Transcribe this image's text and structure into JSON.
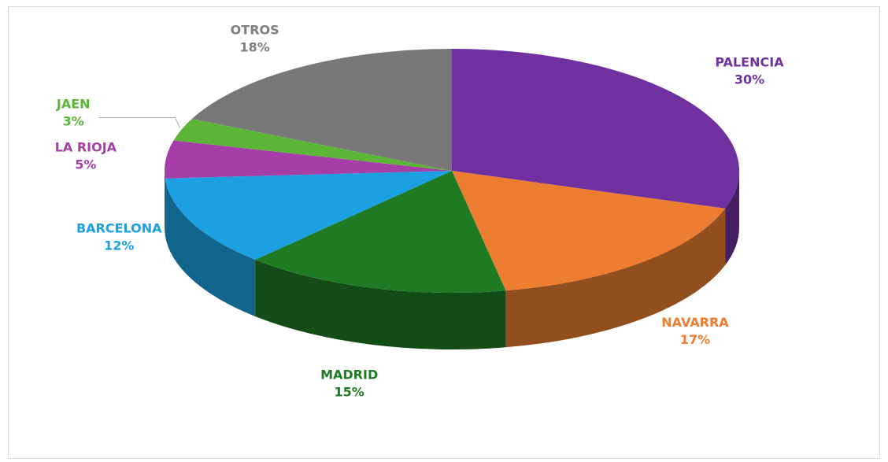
{
  "chart_data": {
    "type": "pie",
    "title": "",
    "slices": [
      {
        "name": "PALENCIA",
        "percent": 30,
        "label": "30%",
        "color": "#7030A0"
      },
      {
        "name": "NAVARRA",
        "percent": 17,
        "label": "17%",
        "color": "#ED7D31"
      },
      {
        "name": "MADRID",
        "percent": 15,
        "label": "15%",
        "color": "#1E7B24"
      },
      {
        "name": "BARCELONA",
        "percent": 12,
        "label": "12%",
        "color": "#1BA1E2"
      },
      {
        "name": "LA RIOJA",
        "percent": 5,
        "label": "5%",
        "color": "#A63EA8"
      },
      {
        "name": "JAEN",
        "percent": 3,
        "label": "3%",
        "color": "#5BB536"
      },
      {
        "name": "OTROS",
        "percent": 18,
        "label": "18%",
        "color": "#787878"
      }
    ],
    "style": "3d-pie",
    "legend": "none"
  }
}
